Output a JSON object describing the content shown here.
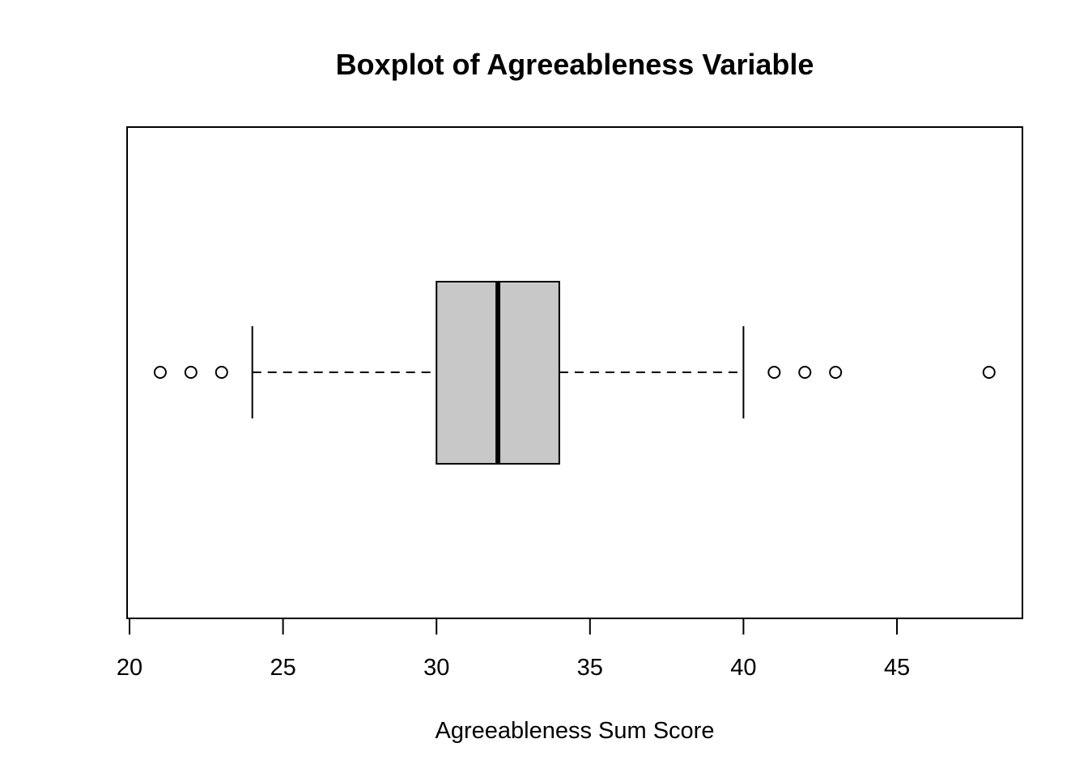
{
  "chart_data": {
    "type": "boxplot",
    "orientation": "horizontal",
    "title": "Boxplot of Agreeableness Variable",
    "xlabel": "Agreeableness Sum Score",
    "ylabel": "",
    "xlim": [
      20,
      48.6
    ],
    "xticks": [
      20,
      25,
      30,
      35,
      40,
      45
    ],
    "box": {
      "whisker_low": 24,
      "q1": 30,
      "median": 32,
      "q3": 34,
      "whisker_high": 40
    },
    "outliers": [
      21,
      22,
      23,
      41,
      42,
      43,
      48
    ],
    "box_color": "#c8c8c8",
    "grid": false
  }
}
